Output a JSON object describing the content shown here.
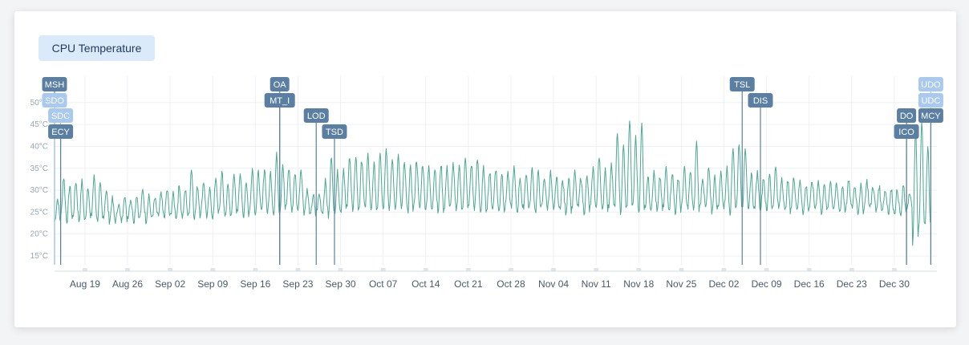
{
  "chart_data": {
    "type": "line",
    "title": "CPU Temperature",
    "ylim": [
      13,
      56
    ],
    "y_ticks": [
      "15°C",
      "20°C",
      "25°C",
      "30°C",
      "35°C",
      "40°C",
      "45°C",
      "50°C"
    ],
    "y_tick_values": [
      15,
      20,
      25,
      30,
      35,
      40,
      45,
      50
    ],
    "x_ticks": [
      "Aug 19",
      "Aug 26",
      "Sep 02",
      "Sep 09",
      "Sep 16",
      "Sep 23",
      "Sep 30",
      "Oct 07",
      "Oct 14",
      "Oct 21",
      "Oct 28",
      "Nov 04",
      "Nov 11",
      "Nov 18",
      "Nov 25",
      "Dec 02",
      "Dec 09",
      "Dec 16",
      "Dec 23",
      "Dec 30"
    ],
    "x_range": [
      "Aug 14",
      "Jan 06"
    ],
    "grid": true,
    "series": [
      {
        "color": "#4aa88f",
        "daily": [
          [
            "Aug 14",
            23,
            28
          ],
          [
            "Aug 15",
            24,
            33
          ],
          [
            "Aug 16",
            23,
            31
          ],
          [
            "Aug 17",
            24,
            32
          ],
          [
            "Aug 18",
            23,
            32
          ],
          [
            "Aug 19",
            23,
            31
          ],
          [
            "Aug 20",
            24,
            33
          ],
          [
            "Aug 21",
            23,
            31
          ],
          [
            "Aug 22",
            24,
            30
          ],
          [
            "Aug 23",
            23,
            28
          ],
          [
            "Aug 24",
            23,
            27
          ],
          [
            "Aug 25",
            23,
            29
          ],
          [
            "Aug 26",
            24,
            28
          ],
          [
            "Aug 27",
            23,
            29
          ],
          [
            "Aug 28",
            24,
            30
          ],
          [
            "Aug 29",
            23,
            29
          ],
          [
            "Aug 30",
            24,
            28
          ],
          [
            "Aug 31",
            24,
            29
          ],
          [
            "Sep 01",
            24,
            30
          ],
          [
            "Sep 02",
            24,
            29
          ],
          [
            "Sep 03",
            24,
            31
          ],
          [
            "Sep 04",
            24,
            30
          ],
          [
            "Sep 05",
            24,
            35
          ],
          [
            "Sep 06",
            24,
            31
          ],
          [
            "Sep 07",
            25,
            32
          ],
          [
            "Sep 08",
            24,
            30
          ],
          [
            "Sep 09",
            24,
            33
          ],
          [
            "Sep 10",
            25,
            34
          ],
          [
            "Sep 11",
            24,
            31
          ],
          [
            "Sep 12",
            25,
            33
          ],
          [
            "Sep 13",
            25,
            34
          ],
          [
            "Sep 14",
            24,
            32
          ],
          [
            "Sep 15",
            25,
            35
          ],
          [
            "Sep 16",
            25,
            34
          ],
          [
            "Sep 17",
            25,
            35
          ],
          [
            "Sep 18",
            25,
            34
          ],
          [
            "Sep 19",
            25,
            38
          ],
          [
            "Sep 20",
            25,
            36
          ],
          [
            "Sep 21",
            26,
            35
          ],
          [
            "Sep 22",
            25,
            34
          ],
          [
            "Sep 23",
            26,
            35
          ],
          [
            "Sep 24",
            25,
            30
          ],
          [
            "Sep 25",
            24,
            29
          ],
          [
            "Sep 26",
            25,
            29
          ],
          [
            "Sep 27",
            25,
            32
          ],
          [
            "Sep 28",
            24,
            38
          ],
          [
            "Sep 29",
            25,
            34
          ],
          [
            "Sep 30",
            25,
            35
          ],
          [
            "Oct 01",
            26,
            38
          ],
          [
            "Oct 02",
            25,
            38
          ],
          [
            "Oct 03",
            26,
            37
          ],
          [
            "Oct 04",
            26,
            38
          ],
          [
            "Oct 05",
            25,
            36
          ],
          [
            "Oct 06",
            26,
            39
          ],
          [
            "Oct 07",
            26,
            40
          ],
          [
            "Oct 08",
            26,
            37
          ],
          [
            "Oct 09",
            26,
            38
          ],
          [
            "Oct 10",
            26,
            36
          ],
          [
            "Oct 11",
            25,
            35
          ],
          [
            "Oct 12",
            26,
            37
          ],
          [
            "Oct 13",
            26,
            36
          ],
          [
            "Oct 14",
            26,
            35
          ],
          [
            "Oct 15",
            26,
            35
          ],
          [
            "Oct 16",
            25,
            36
          ],
          [
            "Oct 17",
            26,
            35
          ],
          [
            "Oct 18",
            26,
            36
          ],
          [
            "Oct 19",
            25,
            36
          ],
          [
            "Oct 20",
            26,
            37
          ],
          [
            "Oct 21",
            26,
            36
          ],
          [
            "Oct 22",
            26,
            37
          ],
          [
            "Oct 23",
            25,
            35
          ],
          [
            "Oct 24",
            26,
            34
          ],
          [
            "Oct 25",
            26,
            35
          ],
          [
            "Oct 26",
            25,
            34
          ],
          [
            "Oct 27",
            26,
            34
          ],
          [
            "Oct 28",
            26,
            35
          ],
          [
            "Oct 29",
            25,
            33
          ],
          [
            "Oct 30",
            26,
            34
          ],
          [
            "Oct 31",
            26,
            35
          ],
          [
            "Nov 01",
            25,
            34
          ],
          [
            "Nov 02",
            26,
            33
          ],
          [
            "Nov 03",
            26,
            34
          ],
          [
            "Nov 04",
            25,
            33
          ],
          [
            "Nov 05",
            26,
            32
          ],
          [
            "Nov 06",
            25,
            33
          ],
          [
            "Nov 07",
            26,
            34
          ],
          [
            "Nov 08",
            26,
            33
          ],
          [
            "Nov 09",
            25,
            33
          ],
          [
            "Nov 10",
            26,
            35
          ],
          [
            "Nov 11",
            26,
            38
          ],
          [
            "Nov 12",
            25,
            35
          ],
          [
            "Nov 13",
            26,
            36
          ],
          [
            "Nov 14",
            26,
            43
          ],
          [
            "Nov 15",
            25,
            40
          ],
          [
            "Nov 16",
            26,
            46
          ],
          [
            "Nov 17",
            26,
            42
          ],
          [
            "Nov 18",
            25,
            45
          ],
          [
            "Nov 19",
            26,
            33
          ],
          [
            "Nov 20",
            26,
            34
          ],
          [
            "Nov 21",
            25,
            33
          ],
          [
            "Nov 22",
            26,
            35
          ],
          [
            "Nov 23",
            26,
            34
          ],
          [
            "Nov 24",
            25,
            33
          ],
          [
            "Nov 25",
            26,
            35
          ],
          [
            "Nov 26",
            26,
            34
          ],
          [
            "Nov 27",
            25,
            41
          ],
          [
            "Nov 28",
            26,
            33
          ],
          [
            "Nov 29",
            26,
            35
          ],
          [
            "Nov 30",
            25,
            33
          ],
          [
            "Dec 01",
            26,
            34
          ],
          [
            "Dec 02",
            26,
            35
          ],
          [
            "Dec 03",
            25,
            40
          ],
          [
            "Dec 04",
            26,
            41
          ],
          [
            "Dec 05",
            26,
            40
          ],
          [
            "Dec 06",
            25,
            34
          ],
          [
            "Dec 07",
            26,
            34
          ],
          [
            "Dec 08",
            26,
            33
          ],
          [
            "Dec 09",
            25,
            34
          ],
          [
            "Dec 10",
            26,
            35
          ],
          [
            "Dec 11",
            26,
            33
          ],
          [
            "Dec 12",
            25,
            32
          ],
          [
            "Dec 13",
            26,
            33
          ],
          [
            "Dec 14",
            26,
            32
          ],
          [
            "Dec 15",
            25,
            31
          ],
          [
            "Dec 16",
            26,
            32
          ],
          [
            "Dec 17",
            26,
            32
          ],
          [
            "Dec 18",
            25,
            31
          ],
          [
            "Dec 19",
            26,
            32
          ],
          [
            "Dec 20",
            26,
            31
          ],
          [
            "Dec 21",
            25,
            31
          ],
          [
            "Dec 22",
            26,
            32
          ],
          [
            "Dec 23",
            26,
            31
          ],
          [
            "Dec 24",
            25,
            31
          ],
          [
            "Dec 25",
            26,
            32
          ],
          [
            "Dec 26",
            26,
            31
          ],
          [
            "Dec 27",
            25,
            31
          ],
          [
            "Dec 28",
            26,
            30
          ],
          [
            "Dec 29",
            25,
            30
          ],
          [
            "Dec 30",
            25,
            30
          ],
          [
            "Dec 31",
            24,
            31
          ],
          [
            "Jan 01",
            26,
            29
          ],
          [
            "Jan 02",
            18,
            44
          ],
          [
            "Jan 03",
            21,
            46
          ],
          [
            "Jan 04",
            22,
            40
          ]
        ]
      }
    ],
    "annotations": [
      {
        "label": "MSH",
        "date": "Aug 14",
        "row": 0,
        "shade": "dark"
      },
      {
        "label": "SDO",
        "date": "Aug 14",
        "row": 1,
        "shade": "light"
      },
      {
        "label": "SDC",
        "date": "Aug 15",
        "row": 2,
        "shade": "light"
      },
      {
        "label": "ECY",
        "date": "Aug 15",
        "row": 3,
        "shade": "dark"
      },
      {
        "label": "OA",
        "date": "Sep 20",
        "row": 0,
        "shade": "dark"
      },
      {
        "label": "MT_I",
        "date": "Sep 20",
        "row": 1,
        "shade": "dark"
      },
      {
        "label": "LOD",
        "date": "Sep 26",
        "row": 2,
        "shade": "dark"
      },
      {
        "label": "TSD",
        "date": "Sep 29",
        "row": 3,
        "shade": "dark"
      },
      {
        "label": "TSL",
        "date": "Dec 05",
        "row": 0,
        "shade": "dark"
      },
      {
        "label": "DIS",
        "date": "Dec 08",
        "row": 1,
        "shade": "dark"
      },
      {
        "label": "DO",
        "date": "Jan 01",
        "row": 2,
        "shade": "dark"
      },
      {
        "label": "ICO",
        "date": "Jan 01",
        "row": 3,
        "shade": "dark"
      },
      {
        "label": "UDO",
        "date": "Jan 05",
        "row": 0,
        "shade": "light"
      },
      {
        "label": "UDC",
        "date": "Jan 05",
        "row": 1,
        "shade": "light"
      },
      {
        "label": "MCY",
        "date": "Jan 05",
        "row": 2,
        "shade": "dark"
      }
    ]
  },
  "colors": {
    "line": "#4aa88f",
    "annotation_dark": "#5b7fa3",
    "annotation_light": "#a9c9ee",
    "grid": "#eef0f3",
    "title_bg": "#dbeafa"
  }
}
